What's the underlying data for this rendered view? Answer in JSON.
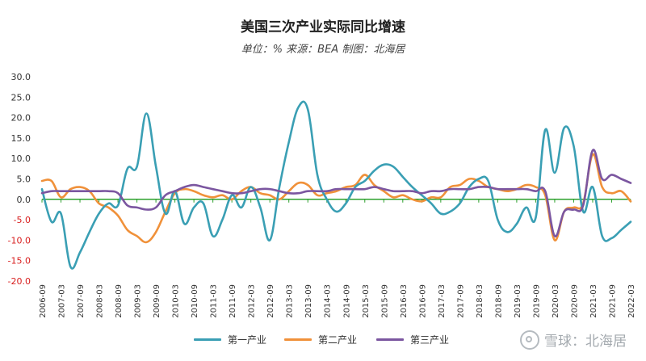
{
  "chart_data": {
    "type": "line",
    "title": "美国三次产业实际同比增速",
    "subtitle": "单位：% 来源：BEA 制图：北海居",
    "xlabel": "",
    "ylabel": "",
    "ylim": [
      -20,
      30
    ],
    "yticks": [
      "30.0",
      "25.0",
      "20.0",
      "15.0",
      "10.0",
      "5.0",
      "0.0",
      "-5.0",
      "-10.0",
      "-15.0",
      "-20.0"
    ],
    "x_tick_labels": [
      "2006-09",
      "2007-03",
      "2007-09",
      "2008-03",
      "2008-09",
      "2009-03",
      "2009-09",
      "2010-03",
      "2010-09",
      "2011-03",
      "2011-09",
      "2012-03",
      "2012-09",
      "2013-03",
      "2013-09",
      "2014-03",
      "2014-09",
      "2015-03",
      "2015-09",
      "2016-03",
      "2016-09",
      "2017-03",
      "2017-09",
      "2018-03",
      "2018-09",
      "2019-03",
      "2019-09",
      "2020-03",
      "2020-09",
      "2021-03",
      "2021-09",
      "2022-03"
    ],
    "grid": false,
    "legend_position": "bottom",
    "x_quarters": [
      "2006-09",
      "2006-12",
      "2007-03",
      "2007-06",
      "2007-09",
      "2007-12",
      "2008-03",
      "2008-06",
      "2008-09",
      "2008-12",
      "2009-03",
      "2009-06",
      "2009-09",
      "2009-12",
      "2010-03",
      "2010-06",
      "2010-09",
      "2010-12",
      "2011-03",
      "2011-06",
      "2011-09",
      "2011-12",
      "2012-03",
      "2012-06",
      "2012-09",
      "2012-12",
      "2013-03",
      "2013-06",
      "2013-09",
      "2013-12",
      "2014-03",
      "2014-06",
      "2014-09",
      "2014-12",
      "2015-03",
      "2015-06",
      "2015-09",
      "2015-12",
      "2016-03",
      "2016-06",
      "2016-09",
      "2016-12",
      "2017-03",
      "2017-06",
      "2017-09",
      "2017-12",
      "2018-03",
      "2018-06",
      "2018-09",
      "2018-12",
      "2019-03",
      "2019-06",
      "2019-09",
      "2019-12",
      "2020-03",
      "2020-06",
      "2020-09",
      "2020-12",
      "2021-03",
      "2021-06",
      "2021-09",
      "2021-12",
      "2022-03"
    ],
    "series": [
      {
        "name": "第一产业",
        "color": "#3a9fb4",
        "values": [
          2.5,
          -5.5,
          -3.5,
          -16.5,
          -13.0,
          -8.0,
          -3.5,
          -1.0,
          -1.5,
          7.5,
          8.0,
          21.0,
          8.0,
          -3.5,
          2.0,
          -6.0,
          -2.0,
          -1.0,
          -9.0,
          -5.0,
          1.0,
          -2.0,
          3.0,
          -2.0,
          -10.0,
          3.0,
          14.0,
          22.5,
          22.0,
          6.0,
          0.0,
          -3.0,
          -1.0,
          3.0,
          4.5,
          7.0,
          8.5,
          8.0,
          5.5,
          3.0,
          1.0,
          -1.0,
          -3.5,
          -3.0,
          -1.0,
          3.0,
          5.0,
          4.5,
          -5.0,
          -8.0,
          -6.0,
          -2.0,
          -4.5,
          17.0,
          6.5,
          17.5,
          13.0,
          -3.0,
          3.0,
          -9.0,
          -9.5,
          -7.5,
          -5.5
        ]
      },
      {
        "name": "第二产业",
        "color": "#f0913a",
        "values": [
          4.5,
          4.5,
          0.5,
          2.5,
          3.0,
          2.0,
          -1.0,
          -2.0,
          -4.0,
          -7.5,
          -9.0,
          -10.5,
          -8.0,
          -3.0,
          1.5,
          2.5,
          2.0,
          1.0,
          0.5,
          1.0,
          0.0,
          2.0,
          3.0,
          1.5,
          1.0,
          0.0,
          2.0,
          4.0,
          3.5,
          1.0,
          1.5,
          2.0,
          3.0,
          3.5,
          6.0,
          3.5,
          2.0,
          0.5,
          1.0,
          0.0,
          -0.5,
          0.5,
          0.5,
          3.0,
          3.5,
          5.0,
          4.5,
          3.0,
          2.5,
          2.0,
          2.5,
          3.5,
          3.0,
          1.0,
          -10.0,
          -3.0,
          -2.0,
          -1.0,
          11.0,
          3.0,
          1.5,
          2.0,
          -0.5
        ]
      },
      {
        "name": "第三产业",
        "color": "#7b56a0",
        "values": [
          1.5,
          2.0,
          2.0,
          2.0,
          2.0,
          2.0,
          2.0,
          2.0,
          1.5,
          -1.5,
          -2.0,
          -2.5,
          -2.0,
          1.0,
          2.0,
          3.0,
          3.5,
          3.0,
          2.5,
          2.0,
          1.5,
          1.5,
          2.0,
          2.5,
          2.5,
          2.0,
          1.5,
          1.5,
          2.0,
          2.0,
          2.0,
          2.5,
          2.5,
          2.5,
          2.5,
          3.0,
          2.5,
          2.0,
          2.0,
          2.0,
          1.5,
          2.0,
          2.0,
          2.5,
          2.5,
          2.5,
          3.0,
          3.0,
          2.5,
          2.5,
          2.5,
          2.5,
          2.0,
          2.0,
          -9.0,
          -3.0,
          -2.5,
          -1.5,
          12.0,
          5.0,
          6.0,
          5.0,
          4.0
        ]
      }
    ]
  },
  "watermark_text": "雪球：北海居"
}
